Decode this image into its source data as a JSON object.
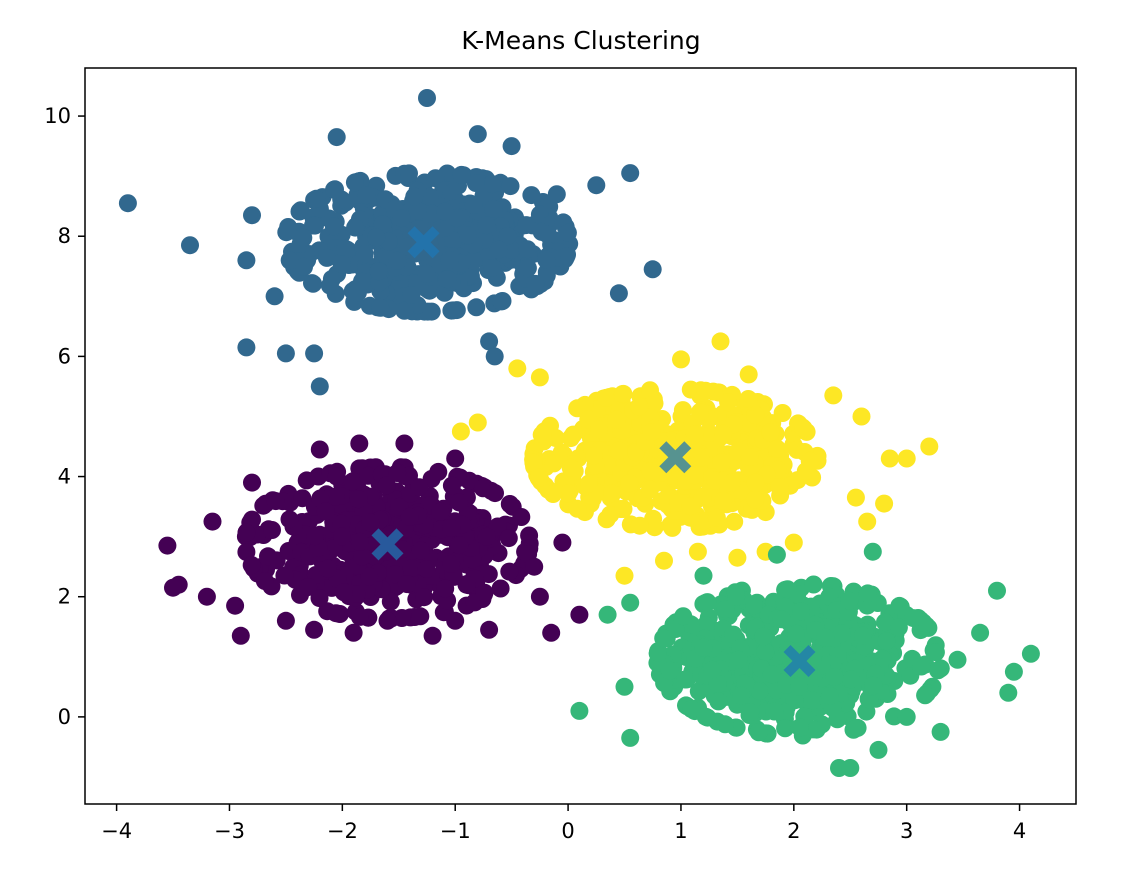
{
  "chart_data": {
    "type": "scatter",
    "title": "K-Means Clustering",
    "xlabel": "",
    "ylabel": "",
    "xlim": [
      -4.28,
      4.5
    ],
    "ylim": [
      -1.45,
      10.8
    ],
    "xticks": [
      -4,
      -3,
      -2,
      -1,
      0,
      1,
      2,
      3,
      4
    ],
    "yticks": [
      0,
      2,
      4,
      6,
      8,
      10
    ],
    "xtick_labels": [
      "−4",
      "−3",
      "−2",
      "−1",
      "0",
      "1",
      "2",
      "3",
      "4"
    ],
    "ytick_labels": [
      "0",
      "2",
      "4",
      "6",
      "8",
      "10"
    ],
    "grid": false,
    "legend": "none",
    "colormap": "viridis",
    "clusters": [
      {
        "label": 0,
        "color": "#440154",
        "center": [
          -1.6,
          2.9
        ],
        "spread": [
          0.6,
          0.6
        ],
        "approx_count": 500,
        "points": [
          [
            -3.55,
            2.85
          ],
          [
            -3.45,
            2.2
          ],
          [
            -3.5,
            2.15
          ],
          [
            -2.9,
            1.35
          ],
          [
            -2.95,
            1.85
          ],
          [
            -3.2,
            2.0
          ],
          [
            -3.15,
            3.25
          ],
          [
            -2.8,
            3.9
          ],
          [
            -2.2,
            4.45
          ],
          [
            -2.05,
            4.0
          ],
          [
            -1.85,
            4.55
          ],
          [
            -1.45,
            4.55
          ],
          [
            -1.0,
            4.3
          ],
          [
            -1.2,
            1.35
          ],
          [
            -0.7,
            1.45
          ],
          [
            -0.15,
            1.4
          ],
          [
            0.1,
            1.7
          ],
          [
            -0.25,
            2.0
          ],
          [
            -0.05,
            2.9
          ],
          [
            -2.5,
            1.6
          ],
          [
            -2.25,
            1.45
          ],
          [
            -1.9,
            1.4
          ],
          [
            -1.6,
            1.6
          ],
          [
            -1.0,
            1.6
          ],
          [
            -0.9,
            2.2
          ],
          [
            -0.3,
            2.5
          ]
        ]
      },
      {
        "label": 1,
        "color": "#31688e",
        "center": [
          -1.25,
          7.9
        ],
        "spread": [
          0.6,
          0.55
        ],
        "approx_count": 500,
        "points": [
          [
            -3.9,
            8.55
          ],
          [
            -3.35,
            7.85
          ],
          [
            -2.85,
            6.15
          ],
          [
            -2.5,
            6.05
          ],
          [
            -2.25,
            6.05
          ],
          [
            -2.2,
            5.5
          ],
          [
            -1.25,
            10.3
          ],
          [
            -0.8,
            9.7
          ],
          [
            -0.5,
            9.5
          ],
          [
            -2.05,
            9.65
          ],
          [
            0.55,
            9.05
          ],
          [
            0.75,
            7.45
          ],
          [
            0.45,
            7.05
          ],
          [
            -0.7,
            6.25
          ],
          [
            -0.65,
            6.0
          ],
          [
            -0.1,
            8.7
          ],
          [
            0.25,
            8.85
          ],
          [
            -2.8,
            8.35
          ],
          [
            -2.6,
            7.0
          ],
          [
            -2.85,
            7.6
          ]
        ]
      },
      {
        "label": 2,
        "color": "#35b779",
        "center": [
          2.05,
          0.95
        ],
        "spread": [
          0.6,
          0.6
        ],
        "approx_count": 500,
        "points": [
          [
            0.1,
            0.1
          ],
          [
            0.55,
            -0.35
          ],
          [
            0.5,
            0.5
          ],
          [
            0.35,
            1.7
          ],
          [
            0.55,
            1.9
          ],
          [
            2.4,
            -0.85
          ],
          [
            2.5,
            -0.85
          ],
          [
            2.75,
            -0.55
          ],
          [
            3.3,
            -0.25
          ],
          [
            3.65,
            1.4
          ],
          [
            3.8,
            2.1
          ],
          [
            3.9,
            0.4
          ],
          [
            3.95,
            0.75
          ],
          [
            4.1,
            1.05
          ],
          [
            2.7,
            2.75
          ],
          [
            1.85,
            2.7
          ],
          [
            1.2,
            2.35
          ],
          [
            3.0,
            0.0
          ],
          [
            3.45,
            0.95
          ]
        ]
      },
      {
        "label": 3,
        "color": "#fde725",
        "center": [
          0.95,
          4.3
        ],
        "spread": [
          0.6,
          0.55
        ],
        "approx_count": 500,
        "points": [
          [
            -0.95,
            4.75
          ],
          [
            -0.8,
            4.9
          ],
          [
            -0.45,
            5.8
          ],
          [
            -0.25,
            5.65
          ],
          [
            0.5,
            2.35
          ],
          [
            0.85,
            2.6
          ],
          [
            1.15,
            2.75
          ],
          [
            1.5,
            2.65
          ],
          [
            1.75,
            2.75
          ],
          [
            2.0,
            2.9
          ],
          [
            2.55,
            3.65
          ],
          [
            2.65,
            3.25
          ],
          [
            2.8,
            3.55
          ],
          [
            2.85,
            4.3
          ],
          [
            3.0,
            4.3
          ],
          [
            3.2,
            4.5
          ],
          [
            1.35,
            6.25
          ],
          [
            1.6,
            5.7
          ],
          [
            2.35,
            5.35
          ],
          [
            2.6,
            5.0
          ],
          [
            1.0,
            5.95
          ]
        ]
      }
    ],
    "centroids": {
      "marker": "X",
      "color": "#1f77b4",
      "opacity": 0.75,
      "points": [
        [
          -1.6,
          2.87
        ],
        [
          -1.28,
          7.9
        ],
        [
          2.05,
          0.93
        ],
        [
          0.95,
          4.32
        ]
      ]
    }
  }
}
